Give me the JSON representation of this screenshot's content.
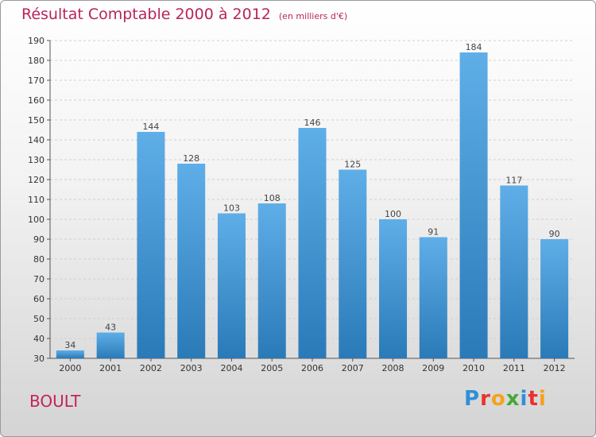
{
  "header": {
    "title": "Résultat Comptable 2000 à 2012",
    "subtitle": "(en milliers d'€)"
  },
  "footer": {
    "place": "BOULT",
    "brand": "Proxiti"
  },
  "colors": {
    "title": "#b8245c",
    "bar_top": "#5faee8",
    "bar_bottom": "#2a7ab8"
  },
  "chart_data": {
    "type": "bar",
    "title": "Résultat Comptable 2000 à 2012",
    "subtitle": "(en milliers d'€)",
    "categories": [
      "2000",
      "2001",
      "2002",
      "2003",
      "2004",
      "2005",
      "2006",
      "2007",
      "2008",
      "2009",
      "2010",
      "2011",
      "2012"
    ],
    "values": [
      34,
      43,
      144,
      128,
      103,
      108,
      146,
      125,
      100,
      91,
      184,
      117,
      90
    ],
    "ylim": [
      30,
      190
    ],
    "yticks": [
      30,
      40,
      50,
      60,
      70,
      80,
      90,
      100,
      110,
      120,
      130,
      140,
      150,
      160,
      170,
      180,
      190
    ],
    "grid": true,
    "xlabel": "",
    "ylabel": ""
  }
}
